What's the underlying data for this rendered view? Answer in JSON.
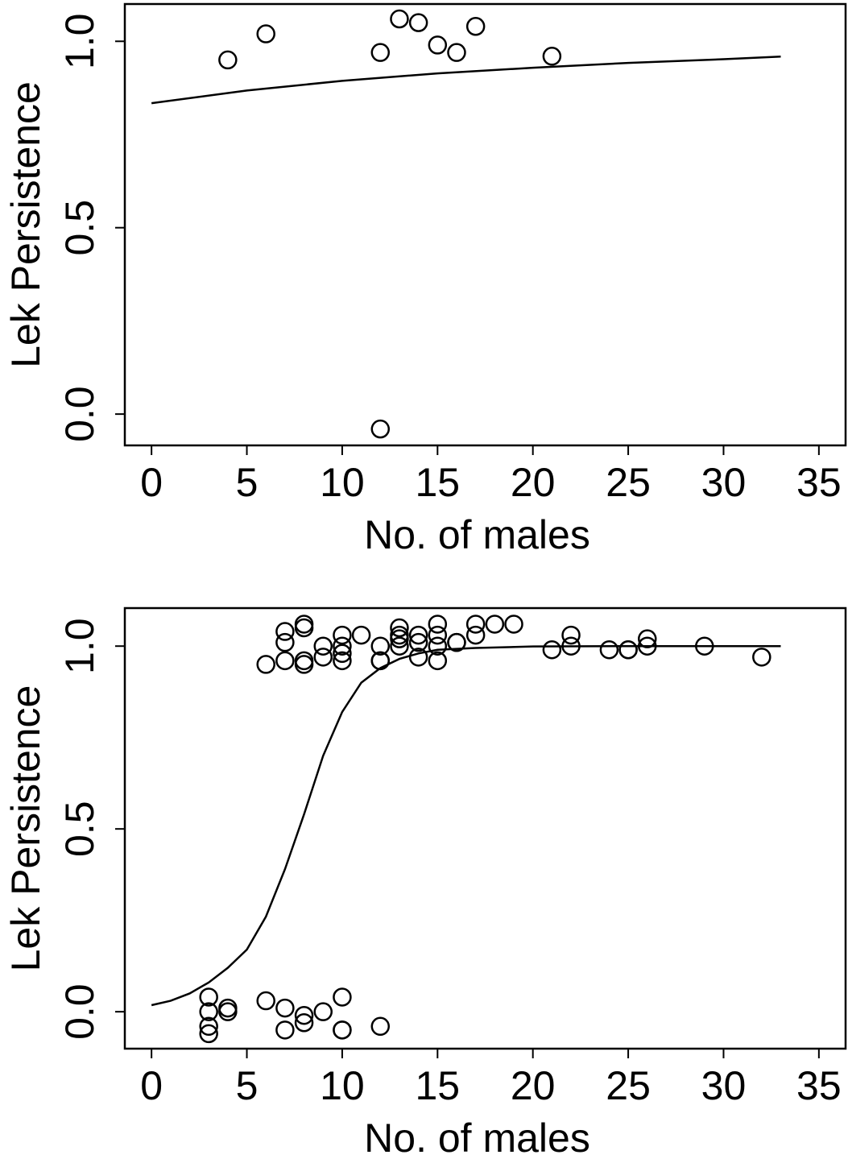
{
  "chart_data": [
    {
      "type": "scatter",
      "xlabel": "No. of males",
      "ylabel": "Lek Persistence",
      "xlim": [
        -1.4,
        36.4
      ],
      "xticks": [
        0,
        5,
        10,
        15,
        20,
        25,
        30,
        35
      ],
      "ylim": [
        -0.084,
        1.1
      ],
      "yticks": [
        {
          "value": 0,
          "label": "0.0"
        },
        0.5,
        {
          "value": 1,
          "label": "1.0"
        }
      ],
      "series": [
        {
          "type": "scatter",
          "color": "#000000",
          "x": [
            4,
            6,
            12,
            12,
            13,
            14,
            15,
            16,
            17,
            21
          ],
          "values": [
            0.95,
            1.02,
            0.97,
            -0.04,
            1.06,
            1.05,
            0.99,
            0.97,
            1.04,
            0.96
          ]
        },
        {
          "type": "line",
          "color": "#000000",
          "x": [
            0,
            5,
            10,
            15,
            20,
            25,
            30,
            33
          ],
          "values": [
            0.834,
            0.868,
            0.894,
            0.914,
            0.929,
            0.942,
            0.952,
            0.959
          ]
        }
      ]
    },
    {
      "type": "scatter",
      "xlabel": "No. of males",
      "ylabel": "Lek Persistence",
      "xlim": [
        -1.4,
        36.4
      ],
      "xticks": [
        0,
        5,
        10,
        15,
        20,
        25,
        30,
        35
      ],
      "ylim": [
        -0.101,
        1.104
      ],
      "yticks": [
        {
          "value": 0,
          "label": "0.0"
        },
        0.5,
        {
          "value": 1,
          "label": "1.0"
        }
      ],
      "series": [
        {
          "type": "scatter",
          "color": "#000000",
          "x": [
            6,
            7,
            7,
            7,
            8,
            8,
            8,
            8,
            9,
            9,
            10,
            10,
            10,
            10,
            11,
            12,
            12,
            12,
            13,
            13,
            13,
            13,
            14,
            14,
            14,
            15,
            15,
            15,
            15,
            16,
            16,
            17,
            17,
            18,
            19,
            21,
            22,
            22,
            24,
            25,
            25,
            26,
            26,
            29,
            32,
            3,
            3,
            3,
            3,
            4,
            4,
            6,
            7,
            7,
            8,
            8,
            9,
            10,
            10,
            10,
            12
          ],
          "values": [
            0.95,
            1.04,
            1.01,
            0.96,
            1.06,
            1.05,
            0.96,
            0.95,
            1.0,
            0.97,
            1.03,
            1.0,
            0.98,
            0.96,
            1.03,
            1.0,
            0.96,
            0.96,
            1.05,
            1.03,
            1.02,
            1.0,
            1.03,
            1.01,
            0.97,
            1.06,
            1.03,
            1.0,
            0.96,
            1.01,
            1.01,
            1.06,
            1.03,
            1.06,
            1.06,
            0.99,
            1.03,
            1.0,
            0.99,
            0.99,
            0.99,
            1.02,
            1.0,
            1.0,
            0.97,
            0.04,
            0.0,
            -0.04,
            -0.06,
            0.01,
            0.0,
            0.03,
            0.01,
            -0.05,
            -0.01,
            -0.03,
            0.0,
            0.04,
            -0.05,
            -0.05,
            -0.04
          ]
        },
        {
          "type": "line",
          "color": "#000000",
          "x": [
            0,
            1,
            2,
            3,
            4,
            5,
            6,
            7,
            8,
            9,
            10,
            11,
            12,
            13,
            14,
            15,
            17,
            20,
            25,
            33
          ],
          "values": [
            0.018,
            0.03,
            0.05,
            0.08,
            0.12,
            0.17,
            0.26,
            0.39,
            0.54,
            0.7,
            0.82,
            0.9,
            0.94,
            0.965,
            0.98,
            0.99,
            0.995,
            0.999,
            1.0,
            1.0
          ]
        }
      ]
    }
  ]
}
